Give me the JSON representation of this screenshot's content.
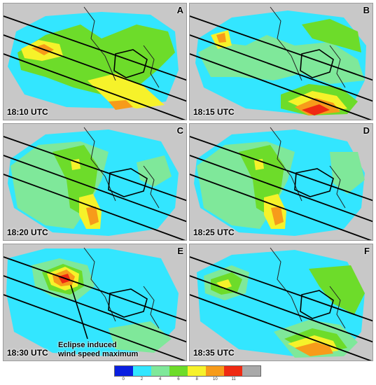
{
  "panels": [
    {
      "letter": "A",
      "time": "18:10 UTC"
    },
    {
      "letter": "B",
      "time": "18:15 UTC"
    },
    {
      "letter": "C",
      "time": "18:20 UTC"
    },
    {
      "letter": "D",
      "time": "18:25 UTC"
    },
    {
      "letter": "E",
      "time": "18:30 UTC"
    },
    {
      "letter": "F",
      "time": "18:35 UTC"
    }
  ],
  "annotation": {
    "line1": "Eclipse induced",
    "line2": "wind speed maximum"
  },
  "colorbar": {
    "colors": [
      "#0a1fe0",
      "#33e6ff",
      "#7fe89a",
      "#6ddc2a",
      "#f6f22a",
      "#f79b1a",
      "#ef2a12",
      "#a9a9a9"
    ],
    "ticks": [
      "0",
      "2",
      "4",
      "6",
      "8",
      "10",
      "11"
    ]
  }
}
